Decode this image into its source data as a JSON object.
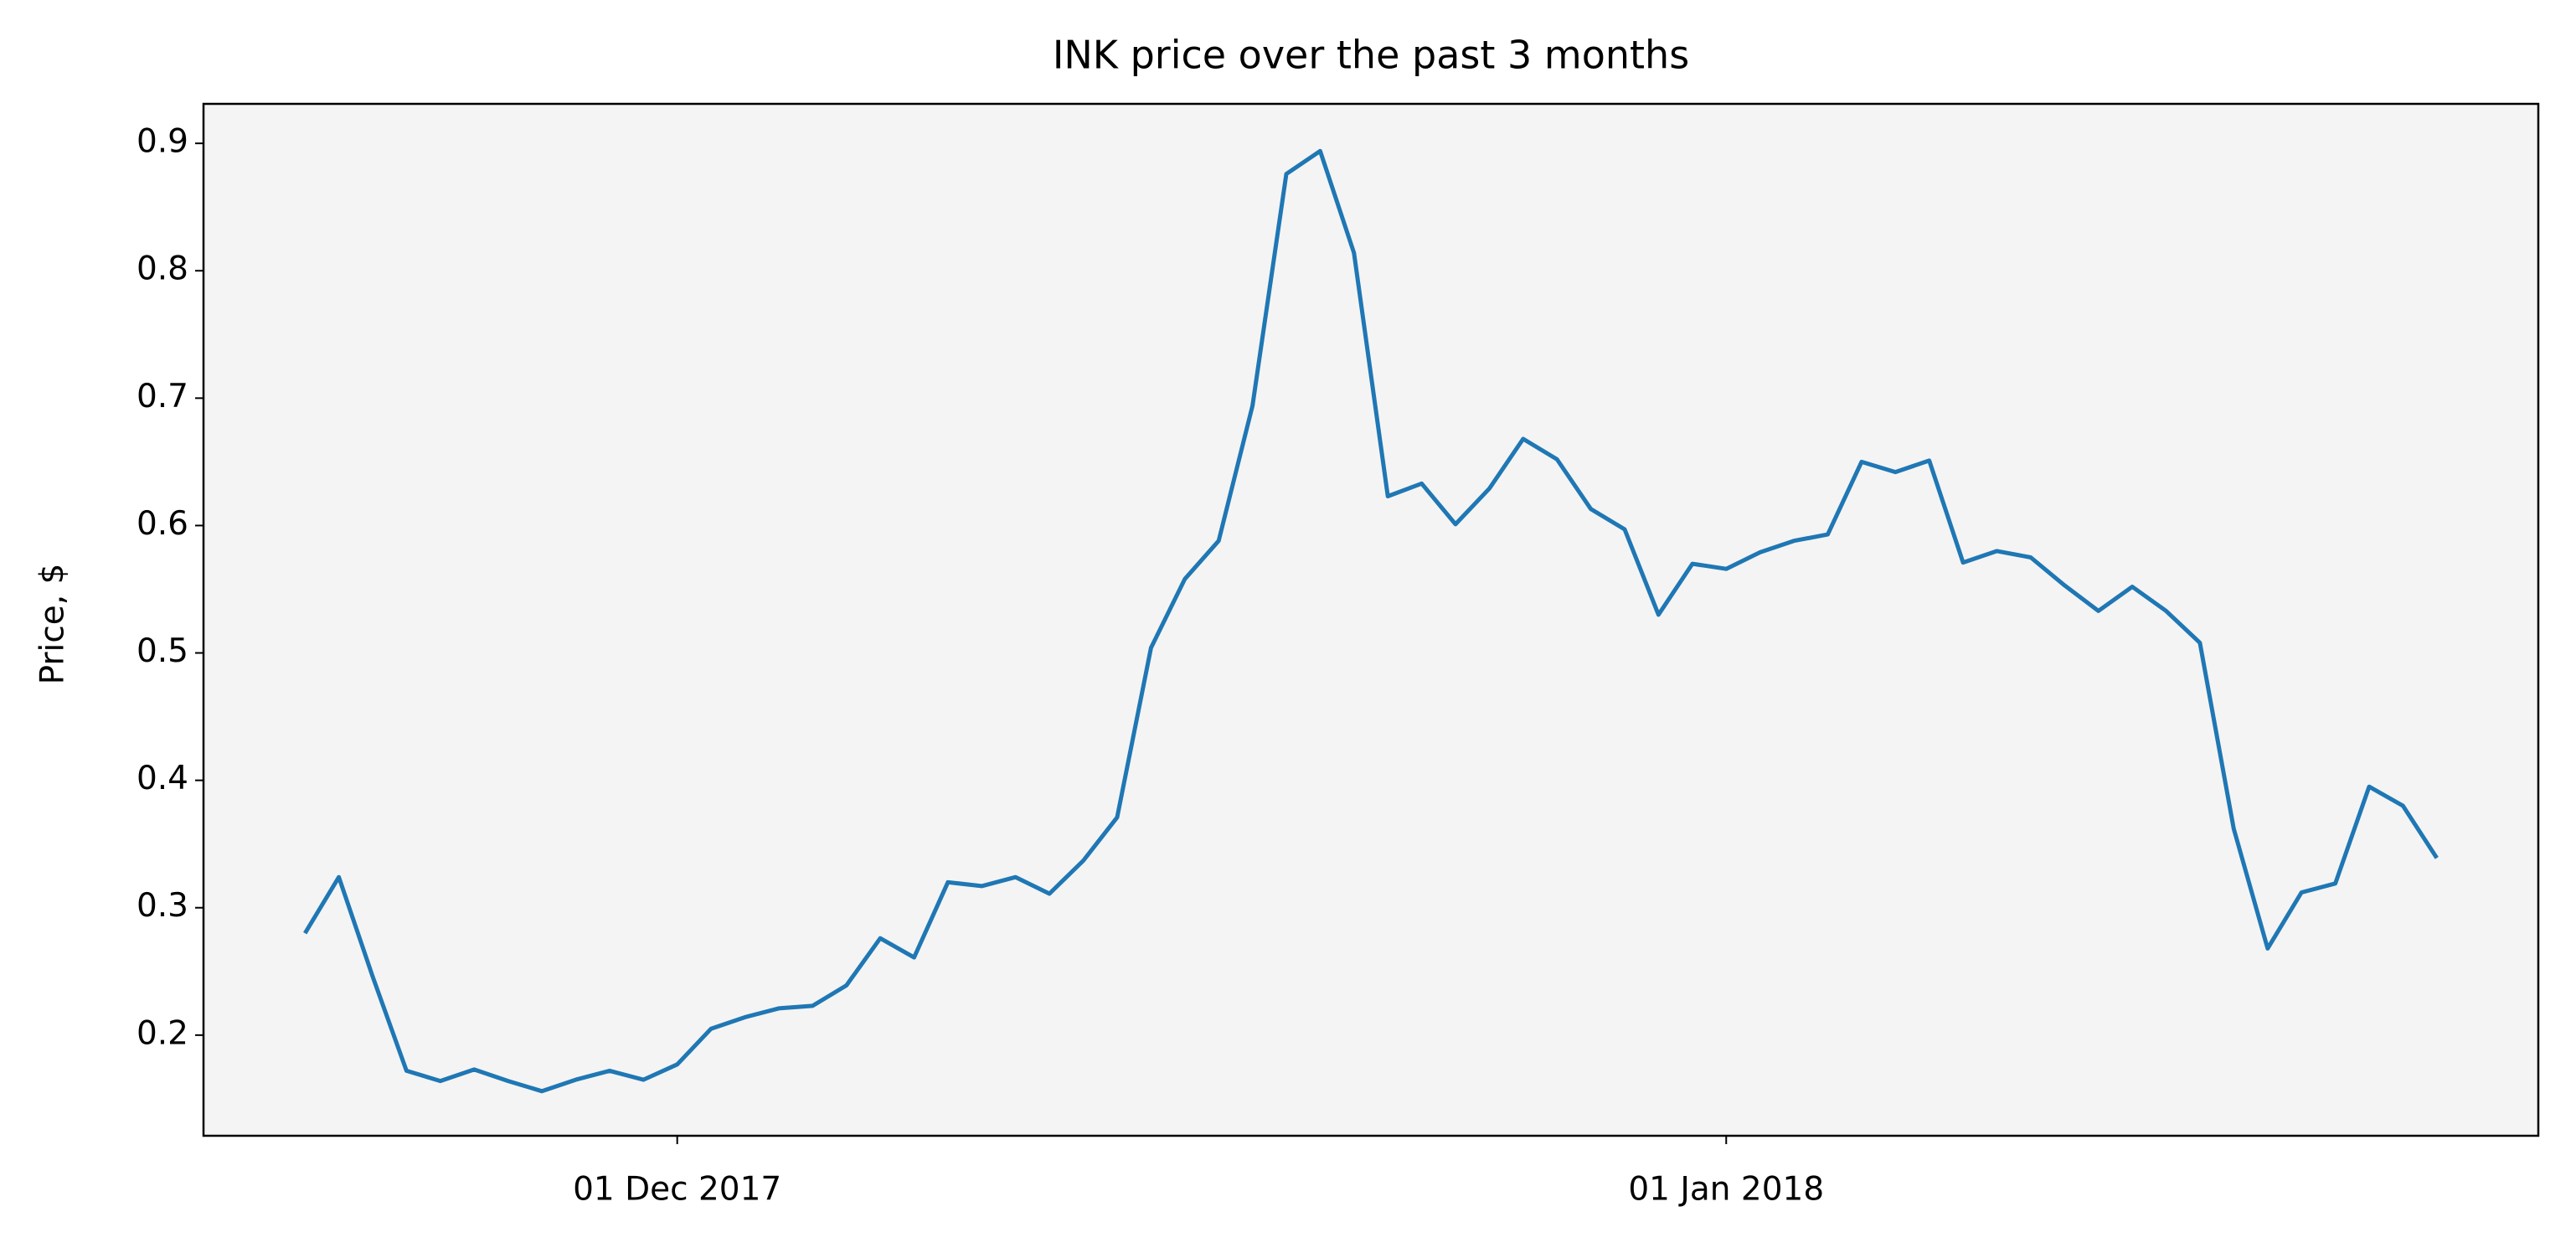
{
  "chart_data": {
    "type": "line",
    "title": "INK price over the past 3 months",
    "y_label": "Price, $",
    "x": [
      "2017-11-20",
      "2017-11-21",
      "2017-11-22",
      "2017-11-23",
      "2017-11-24",
      "2017-11-25",
      "2017-11-26",
      "2017-11-27",
      "2017-11-28",
      "2017-11-29",
      "2017-11-30",
      "2017-12-01",
      "2017-12-02",
      "2017-12-03",
      "2017-12-04",
      "2017-12-05",
      "2017-12-06",
      "2017-12-07",
      "2017-12-08",
      "2017-12-09",
      "2017-12-10",
      "2017-12-11",
      "2017-12-12",
      "2017-12-13",
      "2017-12-14",
      "2017-12-15",
      "2017-12-16",
      "2017-12-17",
      "2017-12-18",
      "2017-12-19",
      "2017-12-20",
      "2017-12-21",
      "2017-12-22",
      "2017-12-23",
      "2017-12-24",
      "2017-12-25",
      "2017-12-26",
      "2017-12-27",
      "2017-12-28",
      "2017-12-29",
      "2017-12-30",
      "2017-12-31",
      "2018-01-01",
      "2018-01-02",
      "2018-01-03",
      "2018-01-04",
      "2018-01-05",
      "2018-01-06",
      "2018-01-07",
      "2018-01-08",
      "2018-01-09",
      "2018-01-10",
      "2018-01-11",
      "2018-01-12",
      "2018-01-13",
      "2018-01-14",
      "2018-01-15",
      "2018-01-16",
      "2018-01-17",
      "2018-01-18",
      "2018-01-19",
      "2018-01-20",
      "2018-01-21",
      "2018-01-22"
    ],
    "series": [
      {
        "name": "INK",
        "color": "#1f77b4",
        "values": [
          0.28,
          0.324,
          0.246,
          0.172,
          0.164,
          0.173,
          0.164,
          0.156,
          0.165,
          0.172,
          0.165,
          0.177,
          0.205,
          0.214,
          0.221,
          0.223,
          0.239,
          0.276,
          0.261,
          0.32,
          0.317,
          0.324,
          0.311,
          0.337,
          0.371,
          0.504,
          0.558,
          0.588,
          0.694,
          0.876,
          0.894,
          0.814,
          0.623,
          0.633,
          0.601,
          0.629,
          0.668,
          0.652,
          0.613,
          0.597,
          0.53,
          0.57,
          0.566,
          0.579,
          0.588,
          0.593,
          0.65,
          0.642,
          0.651,
          0.571,
          0.58,
          0.575,
          0.553,
          0.533,
          0.552,
          0.533,
          0.508,
          0.362,
          0.268,
          0.312,
          0.319,
          0.395,
          0.38,
          0.339
        ]
      }
    ],
    "xlim": [
      "2017-11-17",
      "2018-01-25"
    ],
    "xticks": [
      {
        "value": "2017-12-01",
        "label": "01 Dec 2017"
      },
      {
        "value": "2018-01-01",
        "label": "01 Jan 2018"
      }
    ],
    "ylim": [
      0.121,
      0.931
    ],
    "yticks": [
      0.2,
      0.3,
      0.4,
      0.5,
      0.6,
      0.7,
      0.8,
      0.9
    ],
    "background": "#f4f4f4"
  }
}
